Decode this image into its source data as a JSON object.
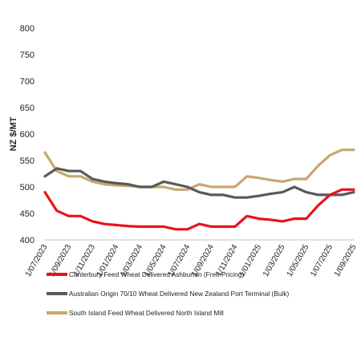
{
  "chart_data": {
    "type": "line",
    "ylabel": "NZ $/MT",
    "xlabel": "",
    "ylim": [
      400,
      800
    ],
    "yticks": [
      400,
      450,
      500,
      550,
      600,
      650,
      700,
      750,
      800
    ],
    "grid": false,
    "legend_position": "bottom",
    "x": [
      "1/07/2023",
      "1/08/2023",
      "1/09/2023",
      "1/10/2023",
      "1/11/2023",
      "1/12/2023",
      "1/01/2024",
      "1/02/2024",
      "1/03/2024",
      "1/04/2024",
      "1/05/2024",
      "1/06/2024",
      "1/07/2024",
      "1/08/2024",
      "1/09/2024",
      "1/10/2024",
      "1/11/2024",
      "1/12/2024",
      "1/01/2025",
      "1/02/2025",
      "1/03/2025",
      "1/04/2025",
      "1/05/2025",
      "1/06/2025",
      "1/07/2025",
      "1/08/2025",
      "1/09/2025"
    ],
    "xtick_labels": [
      "1/07/2023",
      "1/09/2023",
      "1/11/2023",
      "1/01/2024",
      "1/03/2024",
      "1/05/2024",
      "1/07/2024",
      "1/09/2024",
      "1/11/2024",
      "1/01/2025",
      "1/03/2025",
      "1/05/2025",
      "1/07/2025",
      "1/09/2025"
    ],
    "series": [
      {
        "name": "Canterbury Feed Wheat Delivered Ashburton (Free Pricing)",
        "color": "#e8131b",
        "values": [
          490,
          455,
          445,
          445,
          435,
          430,
          428,
          426,
          425,
          425,
          425,
          420,
          420,
          430,
          425,
          425,
          425,
          445,
          440,
          438,
          435,
          440,
          440,
          465,
          485,
          495,
          495
        ]
      },
      {
        "name": "Australian Origin 70/10 Wheat Delivered New Zealand Port Terminal (Bulk)",
        "color": "#595959",
        "values": [
          520,
          535,
          530,
          530,
          515,
          510,
          507,
          505,
          500,
          500,
          510,
          505,
          500,
          490,
          485,
          485,
          480,
          480,
          483,
          487,
          490,
          500,
          490,
          485,
          485,
          485,
          490
        ]
      },
      {
        "name": "South Island Feed Wheat Delivered North Island Mill",
        "color": "#c9a66b",
        "values": [
          565,
          530,
          520,
          520,
          510,
          505,
          503,
          502,
          500,
          500,
          500,
          495,
          495,
          505,
          500,
          500,
          500,
          520,
          517,
          513,
          510,
          515,
          515,
          540,
          560,
          570,
          570
        ]
      }
    ]
  }
}
